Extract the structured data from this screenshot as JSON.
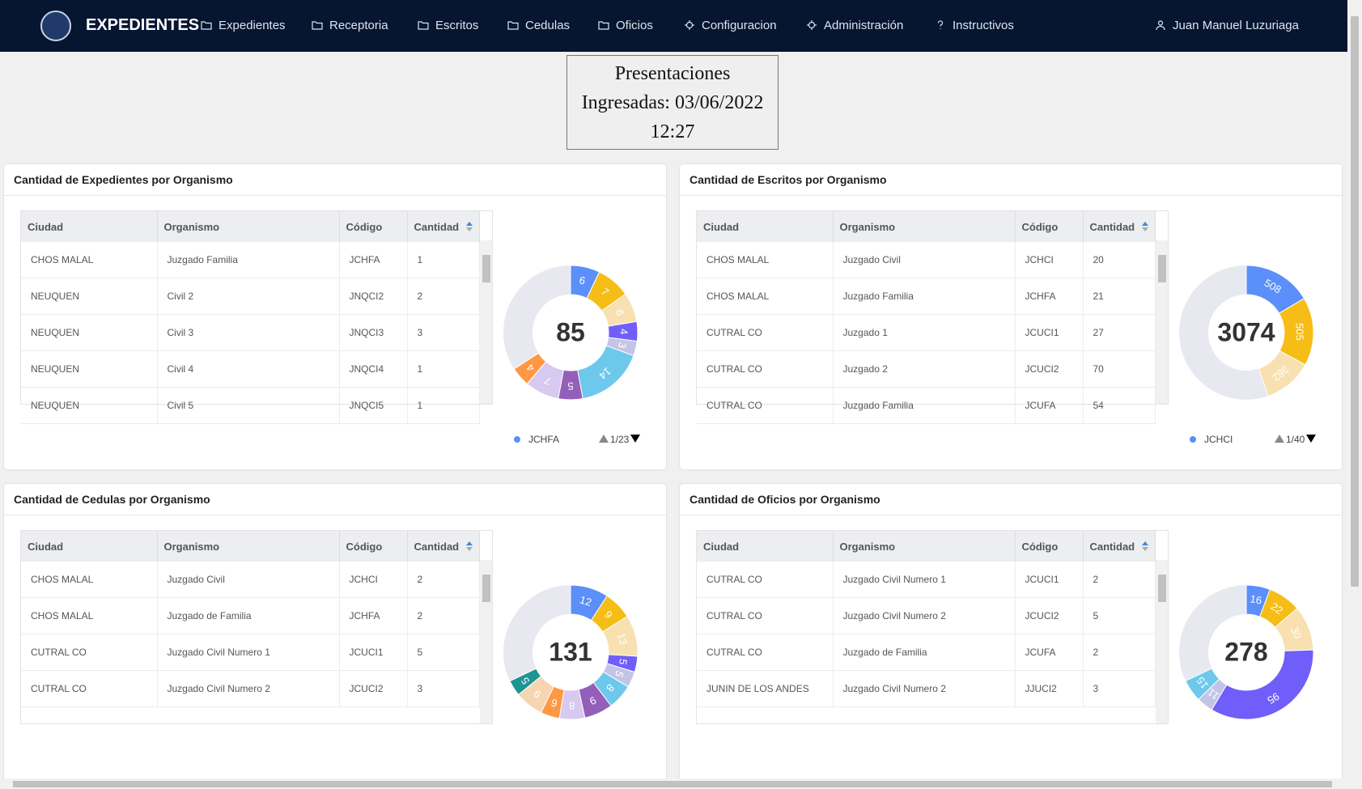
{
  "nav": {
    "brand": "EXPEDIENTES",
    "items": [
      "Expedientes",
      "Receptoria",
      "Escritos",
      "Cedulas",
      "Oficios",
      "Configuracion",
      "Administración",
      "Instructivos"
    ],
    "user": "Juan Manuel Luzuriaga"
  },
  "clock": [
    "Presentaciones",
    "Ingresadas: 03/06/2022",
    "12:27"
  ],
  "palette": [
    "#5b8ff9",
    "#f6bd16",
    "#f8e0b0",
    "#6f5ef9",
    "#c4c4e8",
    "#6dc8ec",
    "#945fb9",
    "#d7c9f0",
    "#ff9845",
    "#f6d5b0",
    "#1e9493",
    "#a8dede",
    "#ff99c3",
    "#5ad8a6"
  ],
  "panels": [
    {
      "title": "Cantidad de Expedientes por Organismo",
      "columns": [
        "Ciudad",
        "Organismo",
        "Código",
        "Cantidad"
      ],
      "rows": [
        [
          "CHOS MALAL",
          "Juzgado Familia",
          "JCHFA",
          1
        ],
        [
          "NEUQUEN",
          "Civil 2",
          "JNQCI2",
          2
        ],
        [
          "NEUQUEN",
          "Civil 3",
          "JNQCI3",
          3
        ],
        [
          "NEUQUEN",
          "Civil 4",
          "JNQCI4",
          1
        ],
        [
          "NEUQUEN",
          "Civil 5",
          "JNQCI5",
          1
        ]
      ],
      "total": 85,
      "segments": [
        6,
        7,
        6,
        4,
        3,
        14,
        5,
        7,
        4
      ],
      "legend": "JCHFA",
      "page": "1/23"
    },
    {
      "title": "Cantidad de Escritos por Organismo",
      "columns": [
        "Ciudad",
        "Organismo",
        "Código",
        "Cantidad"
      ],
      "rows": [
        [
          "CHOS MALAL",
          "Juzgado Civil",
          "JCHCI",
          20
        ],
        [
          "CHOS MALAL",
          "Juzgado Familia",
          "JCHFA",
          21
        ],
        [
          "CUTRAL CO",
          "Juzgado 1",
          "JCUCI1",
          27
        ],
        [
          "CUTRAL CO",
          "Juzgado 2",
          "JCUCI2",
          70
        ],
        [
          "CUTRAL CO",
          "Juzgado Familia",
          "JCUFA",
          54
        ]
      ],
      "total": 3074,
      "segments": [
        508,
        505,
        362
      ],
      "legend": "JCHCI",
      "page": "1/40"
    },
    {
      "title": "Cantidad de Cedulas por Organismo",
      "columns": [
        "Ciudad",
        "Organismo",
        "Código",
        "Cantidad"
      ],
      "rows": [
        [
          "CHOS MALAL",
          "Juzgado Civil",
          "JCHCI",
          2
        ],
        [
          "CHOS MALAL",
          "Juzgado de Familia",
          "JCHFA",
          2
        ],
        [
          "CUTRAL CO",
          "Juzgado Civil Numero 1",
          "JCUCI1",
          5
        ],
        [
          "CUTRAL CO",
          "Juzgado Civil Numero 2",
          "JCUCI2",
          3
        ]
      ],
      "total": 131,
      "segments": [
        12,
        9,
        13,
        5,
        5,
        8,
        9,
        8,
        6,
        9,
        5
      ]
    },
    {
      "title": "Cantidad de Oficios por Organismo",
      "columns": [
        "Ciudad",
        "Organismo",
        "Código",
        "Cantidad"
      ],
      "rows": [
        [
          "CUTRAL CO",
          "Juzgado Civil Numero 1",
          "JCUCI1",
          2
        ],
        [
          "CUTRAL CO",
          "Juzgado Civil Numero 2",
          "JCUCI2",
          5
        ],
        [
          "CUTRAL CO",
          "Juzgado de Familia",
          "JCUFA",
          2
        ],
        [
          "JUNIN DE LOS ANDES",
          "Juzgado Civil Numero 2",
          "JJUCI2",
          3
        ]
      ],
      "total": 278,
      "segments": [
        16,
        22,
        30,
        95,
        11,
        15
      ]
    }
  ]
}
